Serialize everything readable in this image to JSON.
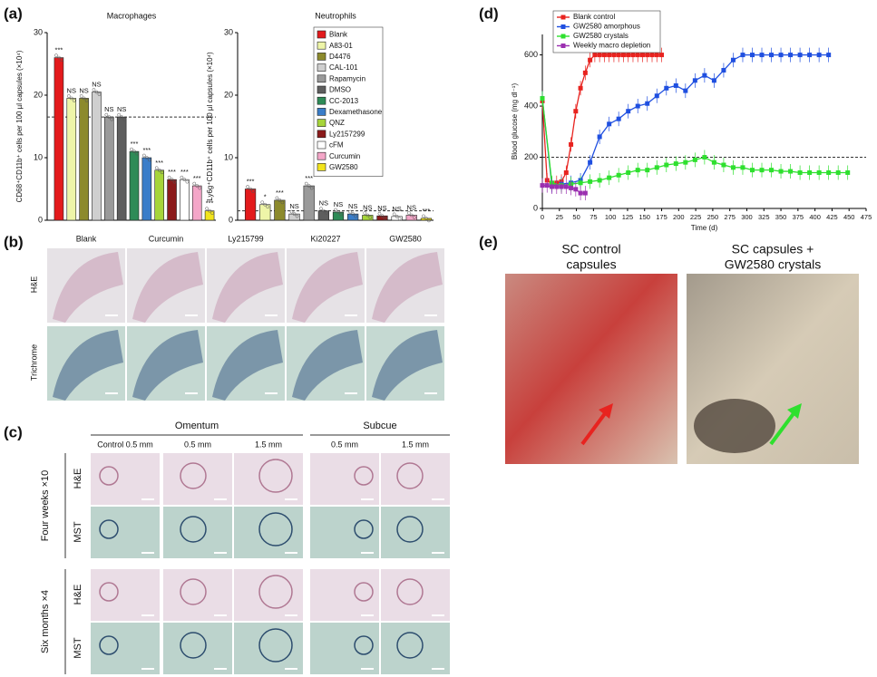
{
  "panel_labels": [
    "(a)",
    "(b)",
    "(c)",
    "(d)",
    "(e)"
  ],
  "chart_data": [
    {
      "type": "bar",
      "title": "Macrophages",
      "y_label": "CD68⁺CD11b⁺ cells per 100 µl capsules (×10⁴)",
      "values": [
        26,
        19.5,
        19.5,
        20.5,
        16.5,
        16.5,
        11,
        10,
        8,
        6.5,
        6.5,
        5.5,
        1.5
      ],
      "annotations": [
        "***",
        "NS",
        "NS",
        "NS",
        "NS",
        "NS",
        "***",
        "***",
        "***",
        "***",
        "***",
        "***",
        "***"
      ],
      "colors": [
        "#e31a1c",
        "#eef5a8",
        "#8c8a2c",
        "#cfcfcf",
        "#9a9a9a",
        "#5e5e5e",
        "#2e8b57",
        "#3a7dc9",
        "#a6d53a",
        "#8b1a1a",
        "#ffffff",
        "#f4a6c8",
        "#f2e41c"
      ],
      "threshold": 16.5,
      "ylim": [
        0,
        30
      ],
      "yticks": [
        0,
        10,
        20,
        30
      ]
    },
    {
      "type": "bar",
      "title": "Neutrophils",
      "y_label": "Ly6g⁺CD11b⁺ cells per 100 µl capsules (×10⁴)",
      "categories": [
        "Blank",
        "A83-01",
        "D4476",
        "CAL-101",
        "Rapamycin",
        "DMSO",
        "CC-2013",
        "Dexamethasone",
        "QNZ",
        "Ly2157299",
        "cFM",
        "Curcumin",
        "GW2580"
      ],
      "values": [
        5,
        2.5,
        3.2,
        1,
        5.5,
        1.5,
        1.3,
        1,
        0.8,
        0.7,
        0.6,
        0.8,
        0.3
      ],
      "annotations": [
        "***",
        "*",
        "***",
        "NS",
        "***",
        "NS",
        "NS",
        "NS",
        "NS",
        "NS",
        "NS",
        "NS",
        "***"
      ],
      "colors": [
        "#e31a1c",
        "#eef5a8",
        "#8c8a2c",
        "#cfcfcf",
        "#9a9a9a",
        "#5e5e5e",
        "#2e8b57",
        "#3a7dc9",
        "#a6d53a",
        "#8b1a1a",
        "#ffffff",
        "#f4a6c8",
        "#f2e41c"
      ],
      "threshold": 1.5,
      "legend": "top-right",
      "ylim": [
        0,
        30
      ],
      "yticks": [
        0,
        10,
        20,
        30
      ]
    },
    {
      "type": "line",
      "x_label": "Time (d)",
      "y_label": "Blood glucose (mg dl⁻¹)",
      "series": [
        {
          "name": "Blank control",
          "color": "#e8231f",
          "x": [
            0,
            7,
            14,
            21,
            28,
            35,
            42,
            49,
            56,
            63,
            70,
            77,
            84,
            91,
            98,
            105,
            112,
            119,
            126,
            133,
            140,
            147,
            154,
            161,
            168,
            175
          ],
          "values": [
            420,
            110,
            95,
            100,
            105,
            140,
            250,
            380,
            470,
            530,
            580,
            600,
            600,
            600,
            600,
            600,
            600,
            600,
            600,
            600,
            600,
            600,
            600,
            600,
            600,
            600
          ]
        },
        {
          "name": "GW2580 amorphous",
          "color": "#1f4fe0",
          "x": [
            0,
            14,
            28,
            42,
            56,
            70,
            84,
            98,
            112,
            126,
            140,
            154,
            168,
            182,
            196,
            210,
            224,
            238,
            252,
            266,
            280,
            294,
            308,
            322,
            336,
            350,
            364,
            378,
            392,
            406,
            420
          ],
          "values": [
            430,
            90,
            95,
            100,
            110,
            180,
            280,
            330,
            350,
            380,
            400,
            410,
            440,
            470,
            480,
            460,
            500,
            520,
            500,
            540,
            580,
            600,
            600,
            600,
            600,
            600,
            600,
            600,
            600,
            600,
            600
          ]
        },
        {
          "name": "GW2580 crystals",
          "color": "#2ee02e",
          "x": [
            0,
            14,
            28,
            42,
            56,
            70,
            84,
            98,
            112,
            126,
            140,
            154,
            168,
            182,
            196,
            210,
            224,
            238,
            252,
            266,
            280,
            294,
            308,
            322,
            336,
            350,
            364,
            378,
            392,
            406,
            420,
            434,
            448
          ],
          "values": [
            430,
            100,
            90,
            95,
            100,
            105,
            110,
            120,
            130,
            140,
            150,
            150,
            160,
            170,
            175,
            180,
            190,
            200,
            180,
            170,
            160,
            160,
            150,
            150,
            150,
            145,
            145,
            140,
            140,
            140,
            140,
            140,
            140
          ]
        },
        {
          "name": "Weekly macro depletion",
          "color": "#9b2fb0",
          "x": [
            0,
            7,
            14,
            21,
            28,
            35,
            42,
            49,
            56,
            63
          ],
          "values": [
            90,
            90,
            85,
            85,
            85,
            85,
            80,
            75,
            60,
            60
          ]
        }
      ],
      "threshold": 200,
      "legend": "top-left",
      "xlim": [
        0,
        475
      ],
      "xticks": [
        0,
        25,
        50,
        75,
        100,
        125,
        150,
        175,
        200,
        225,
        250,
        275,
        300,
        325,
        350,
        375,
        400,
        425,
        450,
        475
      ],
      "ylim": [
        0,
        680
      ],
      "yticks": [
        0,
        200,
        400,
        600
      ]
    }
  ],
  "panel_b": {
    "columns": [
      "Blank",
      "Curcumin",
      "Ly215799",
      "Ki20227",
      "GW2580"
    ],
    "rows": [
      "H&E",
      "Trichrome"
    ]
  },
  "panel_c": {
    "groups": [
      "Omentum",
      "Subcue"
    ],
    "columns": [
      "Control 0.5 mm",
      "0.5 mm",
      "1.5 mm",
      "0.5 mm",
      "1.5 mm"
    ],
    "row_groups": [
      {
        "label": "Four weeks ×10",
        "rows": [
          "H&E",
          "MST"
        ]
      },
      {
        "label": "Six months ×4",
        "rows": [
          "H&E",
          "MST"
        ]
      }
    ]
  },
  "panel_e": {
    "captions": [
      [
        "SC control",
        "capsules"
      ],
      [
        "SC capsules +",
        "GW2580 crystals"
      ]
    ]
  }
}
